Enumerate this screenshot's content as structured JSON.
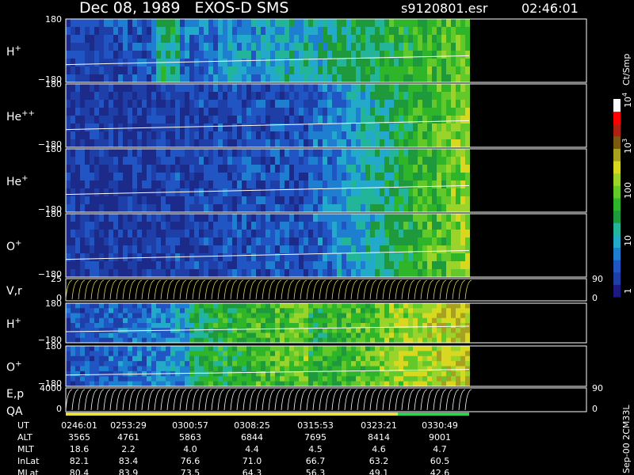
{
  "header": {
    "title": "Dec 08, 1989   EXOS-D SMS",
    "file": "s9120801.esr",
    "time": "02:46:01"
  },
  "panels": [
    {
      "label": "H",
      "sup": "+",
      "ticks_left": [
        "180",
        "−180"
      ]
    },
    {
      "label": "He",
      "sup": "++",
      "ticks_left": [
        "180",
        "−180"
      ]
    },
    {
      "label": "He",
      "sup": "+",
      "ticks_left": [
        "180",
        "−180"
      ]
    },
    {
      "label": "O",
      "sup": "+",
      "ticks_left": [
        "180",
        "−180"
      ]
    },
    {
      "label": "V,r",
      "ticks_left": [
        "25",
        "0"
      ],
      "ticks_right": [
        "90",
        "0"
      ]
    },
    {
      "label": "H",
      "sup": "+",
      "ticks_left": [
        "180",
        "−180"
      ]
    },
    {
      "label": "O",
      "sup": "+",
      "ticks_left": [
        "180",
        "−180"
      ]
    },
    {
      "label": "E,p",
      "label2": "QA",
      "ticks_left": [
        "4000",
        "0"
      ],
      "ticks_right": [
        "90",
        "0"
      ]
    }
  ],
  "colorbar": {
    "unit": "Ct/Smp",
    "ticks": [
      {
        "base": "10",
        "exp": "4"
      },
      {
        "base": "10",
        "exp": "3"
      },
      {
        "base": "100"
      },
      {
        "base": "10"
      },
      {
        "base": "1"
      }
    ]
  },
  "footer": {
    "rows": [
      {
        "label": "UT",
        "values": [
          "0246:01",
          "0253:29",
          "0300:57",
          "0308:25",
          "0315:53",
          "0323:21",
          "0330:49"
        ]
      },
      {
        "label": "ALT",
        "values": [
          "3565",
          "4761",
          "5863",
          "6844",
          "7695",
          "8414",
          "9001"
        ]
      },
      {
        "label": "MLT",
        "values": [
          "18.6",
          "2.2",
          "4.0",
          "4.4",
          "4.5",
          "4.6",
          "4.7"
        ]
      },
      {
        "label": "InLat",
        "values": [
          "82.1",
          "83.4",
          "76.6",
          "71.0",
          "66.7",
          "63.2",
          "60.5"
        ]
      },
      {
        "label": "MLat",
        "values": [
          "80.4",
          "83.9",
          "73.5",
          "64.3",
          "56.3",
          "49.1",
          "42.6"
        ]
      }
    ],
    "stamp": "Sep-00 2CM33L"
  }
}
